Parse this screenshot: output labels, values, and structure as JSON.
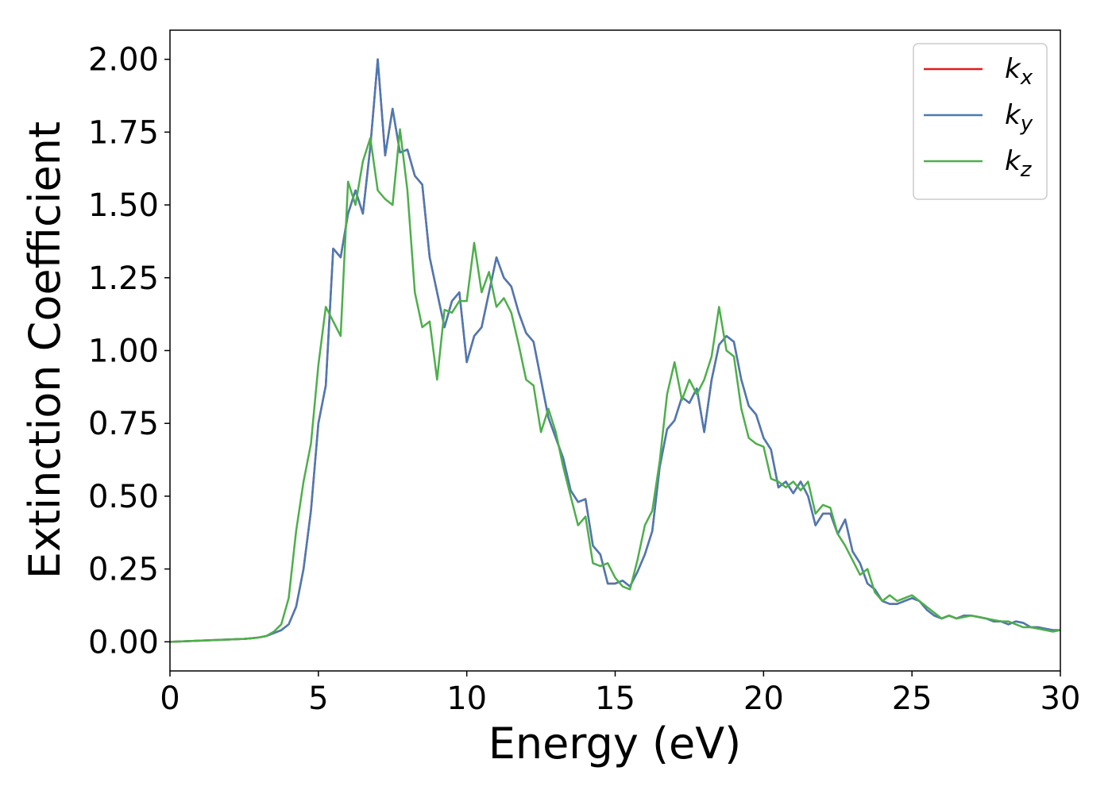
{
  "chart_data": {
    "type": "line",
    "xlabel": "Energy (eV)",
    "ylabel": "Extinction Coefficient",
    "x": [
      0,
      0.25,
      0.5,
      0.75,
      1,
      1.25,
      1.5,
      1.75,
      2,
      2.25,
      2.5,
      2.75,
      3,
      3.25,
      3.5,
      3.75,
      4,
      4.25,
      4.5,
      4.75,
      5,
      5.25,
      5.5,
      5.75,
      6,
      6.25,
      6.5,
      6.75,
      7,
      7.25,
      7.5,
      7.75,
      8,
      8.25,
      8.5,
      8.75,
      9,
      9.25,
      9.5,
      9.75,
      10,
      10.25,
      10.5,
      10.75,
      11,
      11.25,
      11.5,
      11.75,
      12,
      12.25,
      12.5,
      12.75,
      13,
      13.25,
      13.5,
      13.75,
      14,
      14.25,
      14.5,
      14.75,
      15,
      15.25,
      15.5,
      15.75,
      16,
      16.25,
      16.5,
      16.75,
      17,
      17.25,
      17.5,
      17.75,
      18,
      18.25,
      18.5,
      18.75,
      19,
      19.25,
      19.5,
      19.75,
      20,
      20.25,
      20.5,
      20.75,
      21,
      21.25,
      21.5,
      21.75,
      22,
      22.25,
      22.5,
      22.75,
      23,
      23.25,
      23.5,
      23.75,
      24,
      24.25,
      24.5,
      24.75,
      25,
      25.25,
      25.5,
      25.75,
      26,
      26.25,
      26.5,
      26.75,
      27,
      27.25,
      27.5,
      27.75,
      28,
      28.25,
      28.5,
      28.75,
      29,
      29.25,
      29.5,
      29.75,
      30
    ],
    "series": [
      {
        "name": "kx",
        "color": "#e41a1c",
        "values": [
          0,
          0.001,
          0.002,
          0.003,
          0.004,
          0.005,
          0.006,
          0.007,
          0.008,
          0.009,
          0.01,
          0.012,
          0.015,
          0.02,
          0.03,
          0.04,
          0.06,
          0.12,
          0.25,
          0.45,
          0.75,
          0.88,
          1.35,
          1.32,
          1.47,
          1.55,
          1.47,
          1.7,
          2.0,
          1.67,
          1.83,
          1.68,
          1.69,
          1.6,
          1.57,
          1.32,
          1.2,
          1.08,
          1.17,
          1.2,
          0.96,
          1.05,
          1.08,
          1.2,
          1.32,
          1.25,
          1.22,
          1.13,
          1.06,
          1.03,
          0.9,
          0.77,
          0.7,
          0.63,
          0.52,
          0.48,
          0.49,
          0.33,
          0.3,
          0.2,
          0.2,
          0.21,
          0.19,
          0.24,
          0.3,
          0.38,
          0.6,
          0.73,
          0.76,
          0.84,
          0.82,
          0.87,
          0.72,
          0.9,
          1.02,
          1.05,
          1.03,
          0.9,
          0.81,
          0.78,
          0.7,
          0.66,
          0.53,
          0.55,
          0.51,
          0.55,
          0.5,
          0.4,
          0.44,
          0.44,
          0.37,
          0.42,
          0.31,
          0.27,
          0.2,
          0.18,
          0.14,
          0.13,
          0.13,
          0.14,
          0.15,
          0.14,
          0.11,
          0.09,
          0.08,
          0.09,
          0.08,
          0.09,
          0.09,
          0.085,
          0.08,
          0.07,
          0.07,
          0.06,
          0.07,
          0.065,
          0.05,
          0.05,
          0.045,
          0.04,
          0.04
        ]
      },
      {
        "name": "ky",
        "color": "#4a7ab5",
        "values": [
          0,
          0.001,
          0.002,
          0.003,
          0.004,
          0.005,
          0.006,
          0.007,
          0.008,
          0.009,
          0.01,
          0.012,
          0.015,
          0.02,
          0.03,
          0.04,
          0.06,
          0.12,
          0.25,
          0.45,
          0.75,
          0.88,
          1.35,
          1.32,
          1.47,
          1.55,
          1.47,
          1.7,
          2.0,
          1.67,
          1.83,
          1.68,
          1.69,
          1.6,
          1.57,
          1.32,
          1.2,
          1.08,
          1.17,
          1.2,
          0.96,
          1.05,
          1.08,
          1.2,
          1.32,
          1.25,
          1.22,
          1.13,
          1.06,
          1.03,
          0.9,
          0.77,
          0.7,
          0.63,
          0.52,
          0.48,
          0.49,
          0.33,
          0.3,
          0.2,
          0.2,
          0.21,
          0.19,
          0.24,
          0.3,
          0.38,
          0.6,
          0.73,
          0.76,
          0.84,
          0.82,
          0.87,
          0.72,
          0.9,
          1.02,
          1.05,
          1.03,
          0.9,
          0.81,
          0.78,
          0.7,
          0.66,
          0.53,
          0.55,
          0.51,
          0.55,
          0.5,
          0.4,
          0.44,
          0.44,
          0.37,
          0.42,
          0.31,
          0.27,
          0.2,
          0.18,
          0.14,
          0.13,
          0.13,
          0.14,
          0.15,
          0.14,
          0.11,
          0.09,
          0.08,
          0.09,
          0.08,
          0.09,
          0.09,
          0.085,
          0.08,
          0.07,
          0.07,
          0.06,
          0.07,
          0.065,
          0.05,
          0.05,
          0.045,
          0.04,
          0.04
        ]
      },
      {
        "name": "kz",
        "color": "#4daf4a",
        "values": [
          0,
          0.001,
          0.002,
          0.003,
          0.004,
          0.005,
          0.006,
          0.007,
          0.008,
          0.009,
          0.01,
          0.012,
          0.015,
          0.02,
          0.035,
          0.06,
          0.15,
          0.38,
          0.55,
          0.68,
          0.95,
          1.15,
          1.1,
          1.05,
          1.58,
          1.5,
          1.65,
          1.73,
          1.55,
          1.52,
          1.5,
          1.76,
          1.55,
          1.2,
          1.08,
          1.1,
          0.9,
          1.14,
          1.13,
          1.17,
          1.17,
          1.37,
          1.2,
          1.27,
          1.15,
          1.18,
          1.13,
          1.02,
          0.9,
          0.88,
          0.72,
          0.8,
          0.72,
          0.6,
          0.5,
          0.4,
          0.43,
          0.27,
          0.26,
          0.27,
          0.22,
          0.19,
          0.18,
          0.28,
          0.4,
          0.45,
          0.62,
          0.85,
          0.96,
          0.83,
          0.9,
          0.85,
          0.9,
          0.98,
          1.15,
          1.0,
          0.98,
          0.8,
          0.7,
          0.68,
          0.67,
          0.56,
          0.55,
          0.53,
          0.55,
          0.52,
          0.55,
          0.44,
          0.47,
          0.46,
          0.37,
          0.33,
          0.28,
          0.23,
          0.25,
          0.17,
          0.14,
          0.16,
          0.14,
          0.15,
          0.16,
          0.14,
          0.12,
          0.1,
          0.08,
          0.09,
          0.08,
          0.085,
          0.09,
          0.085,
          0.08,
          0.075,
          0.07,
          0.07,
          0.06,
          0.05,
          0.05,
          0.045,
          0.04,
          0.035,
          0.04
        ]
      }
    ],
    "xlim": [
      0,
      30
    ],
    "ylim": [
      -0.1,
      2.1
    ],
    "xticks": [
      0,
      5,
      10,
      15,
      20,
      25,
      30
    ],
    "yticks": [
      {
        "value": 0,
        "label": "0.00"
      },
      {
        "value": 0.25,
        "label": "0.25"
      },
      {
        "value": 0.5,
        "label": "0.50"
      },
      {
        "value": 0.75,
        "label": "0.75"
      },
      {
        "value": 1,
        "label": "1.00"
      },
      {
        "value": 1.25,
        "label": "1.25"
      },
      {
        "value": 1.5,
        "label": "1.50"
      },
      {
        "value": 1.75,
        "label": "1.75"
      },
      {
        "value": 2,
        "label": "2.00"
      }
    ],
    "legend": "upper right",
    "grid": false
  }
}
